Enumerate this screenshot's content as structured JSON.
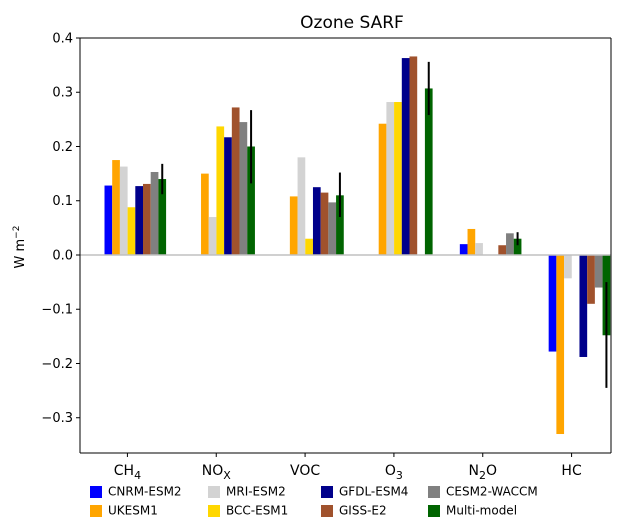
{
  "chart_data": {
    "type": "bar",
    "title": "Ozone SARF",
    "ylabel": "W m",
    "ylabel_sup": "−2",
    "xlabel": "",
    "ylim": [
      -0.365,
      0.4
    ],
    "yticks": [
      -0.3,
      -0.2,
      -0.1,
      0.0,
      0.1,
      0.2,
      0.3,
      0.4
    ],
    "ytick_labels": [
      "−0.3",
      "−0.2",
      "−0.1",
      "0.0",
      "0.1",
      "0.2",
      "0.3",
      "0.4"
    ],
    "grid": false,
    "legend_position": "bottom",
    "categories": [
      {
        "main": "CH",
        "sub": "4"
      },
      {
        "main": "NO",
        "sub": "X"
      },
      {
        "main": "VOC",
        "sub": ""
      },
      {
        "main": "O",
        "sub": "3"
      },
      {
        "main": "N",
        "sub": "2",
        "tail": "O"
      },
      {
        "main": "HC",
        "sub": ""
      }
    ],
    "series": [
      {
        "name": "CNRM-ESM2",
        "color": "#0000ff",
        "values": [
          0.128,
          null,
          null,
          null,
          0.02,
          -0.178
        ]
      },
      {
        "name": "UKESM1",
        "color": "#ffa500",
        "values": [
          0.175,
          0.15,
          0.108,
          0.242,
          0.048,
          -0.33
        ]
      },
      {
        "name": "MRI-ESM2",
        "color": "#d3d3d3",
        "values": [
          0.163,
          0.07,
          0.18,
          0.282,
          0.022,
          -0.043
        ]
      },
      {
        "name": "BCC-ESM1",
        "color": "#ffd700",
        "values": [
          0.088,
          0.237,
          0.03,
          0.282,
          null,
          null
        ]
      },
      {
        "name": "GFDL-ESM4",
        "color": "#00008b",
        "values": [
          0.127,
          0.217,
          0.125,
          0.363,
          null,
          -0.188
        ]
      },
      {
        "name": "GISS-E2",
        "color": "#a0522d",
        "values": [
          0.131,
          0.272,
          0.115,
          0.366,
          0.018,
          -0.09
        ]
      },
      {
        "name": "CESM2-WACCM",
        "color": "#808080",
        "values": [
          0.153,
          0.245,
          0.097,
          null,
          0.04,
          -0.06
        ]
      },
      {
        "name": "Multi-model",
        "color": "#006400",
        "values": [
          0.14,
          0.2,
          0.11,
          0.307,
          0.03,
          -0.148
        ]
      }
    ],
    "error_bars": {
      "series": "Multi-model",
      "low": [
        0.112,
        0.132,
        0.07,
        0.258,
        0.018,
        -0.245
      ],
      "high": [
        0.168,
        0.267,
        0.152,
        0.356,
        0.042,
        -0.05
      ]
    }
  }
}
